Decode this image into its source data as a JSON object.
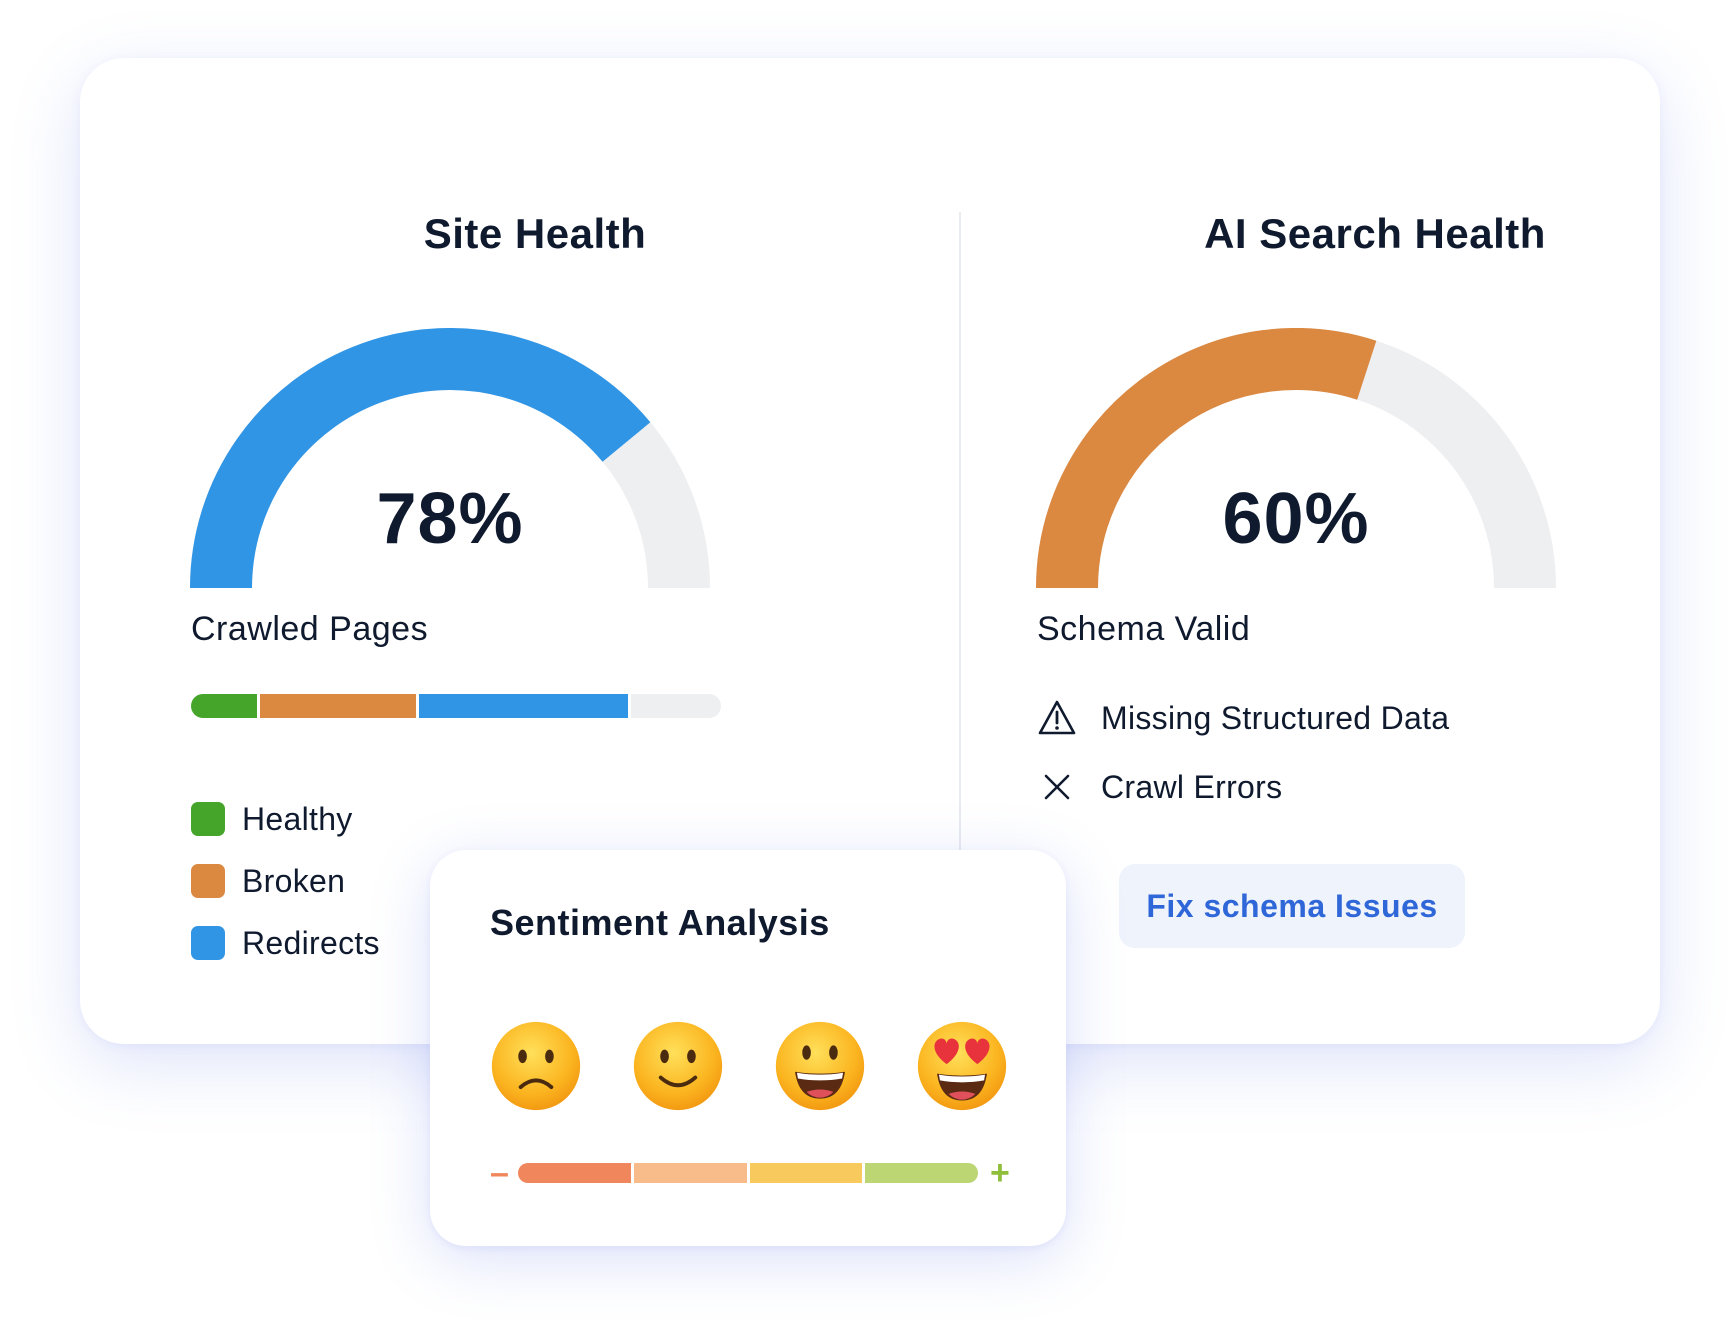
{
  "colors": {
    "healthy": "#44a52a",
    "broken": "#db8841",
    "redirects": "#3195e5",
    "track": "#eeeff1",
    "ai_gauge": "#db8841"
  },
  "site_health": {
    "title": "Site Health",
    "gauge_value": "78%",
    "gauge_fraction": 0.78,
    "crawled_pages_label": "Crawled Pages",
    "bar_segments": [
      {
        "name": "Healthy",
        "fraction": 0.13
      },
      {
        "name": "Broken",
        "fraction": 0.3
      },
      {
        "name": "Redirects",
        "fraction": 0.4
      }
    ],
    "legend": [
      {
        "label": "Healthy",
        "color": "#44a52a"
      },
      {
        "label": "Broken",
        "color": "#db8841"
      },
      {
        "label": "Redirects",
        "color": "#3195e5"
      }
    ]
  },
  "ai_search_health": {
    "title": "AI Search Health",
    "gauge_value": "60%",
    "gauge_fraction": 0.6,
    "schema_label": "Schema Valid",
    "issues": [
      {
        "icon": "warning-triangle-icon",
        "label": "Missing Structured Data"
      },
      {
        "icon": "close-x-icon",
        "label": "Crawl Errors"
      }
    ],
    "fix_button_label": "Fix schema Issues"
  },
  "sentiment": {
    "title": "Sentiment Analysis",
    "emojis": [
      "frowning-face-icon",
      "slightly-smiling-face-icon",
      "grinning-face-icon",
      "heart-eyes-face-icon"
    ],
    "scale_colors": [
      "#f0875c",
      "#f8bb8a",
      "#f8c95c",
      "#bcd673"
    ],
    "minus_sign": "–",
    "plus_sign": "+"
  }
}
